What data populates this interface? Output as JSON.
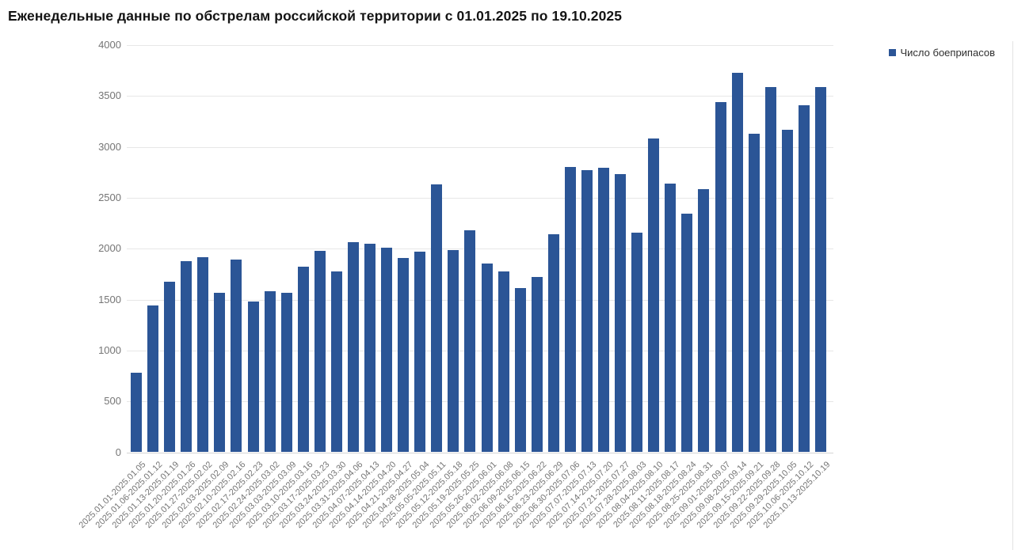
{
  "title": "Еженедельные данные по обстрелам российской территории с 01.01.2025 по 19.10.2025",
  "legend": {
    "label": "Число боеприпасов"
  },
  "colors": {
    "bar": "#2b5596",
    "grid": "#e7e7e7",
    "baseline": "#d6d6d6",
    "axis_text": "#757575",
    "title_text": "#141414",
    "edge_line": "#e3e3e3"
  },
  "chart_data": {
    "type": "bar",
    "title": "Еженедельные данные по обстрелам российской территории с 01.01.2025 по 19.10.2025",
    "xlabel": "",
    "ylabel": "",
    "ylim": [
      0,
      4000
    ],
    "yticks": [
      0,
      500,
      1000,
      1500,
      2000,
      2500,
      3000,
      3500,
      4000
    ],
    "grid": true,
    "legend_position": "top-right",
    "categories": [
      "2025.01.01-2025.01.05",
      "2025.01.06-2025.01.12",
      "2025.01.13-2025.01.19",
      "2025.01.20-2025.01.26",
      "2025.01.27-2025.02.02",
      "2025.02.03-2025.02.09",
      "2025.02.10-2025.02.16",
      "2025.02.17-2025.02.23",
      "2025.02.24-2025.03.02",
      "2025.03.03-2025.03.09",
      "2025.03.10-2025.03.16",
      "2025.03.17-2025.03.23",
      "2025.03.24-2025.03.30",
      "2025.03.31-2025.04.06",
      "2025.04.07-2025.04.13",
      "2025.04.14-2025.04.20",
      "2025.04.21-2025.04.27",
      "2025.04.28-2025.05.04",
      "2025.05.05-2025.05.11",
      "2025.05.12-2025.05.18",
      "2025.05.19-2025.05.25",
      "2025.05.26-2025.06.01",
      "2025.06.02-2025.06.08",
      "2025.06.09-2025.06.15",
      "2025.06.16-2025.06.22",
      "2025.06.23-2025.06.29",
      "2025.06.30-2025.07.06",
      "2025.07.07-2025.07.13",
      "2025.07.14-2025.07.20",
      "2025.07.21-2025.07.27",
      "2025.07.28-2025.08.03",
      "2025.08.04-2025.08.10",
      "2025.08.11-2025.08.17",
      "2025.08.18-2025.08.24",
      "2025.08.25-2025.08.31",
      "2025.09.01-2025.09.07",
      "2025.09.08-2025.09.14",
      "2025.09.15-2025.09.21",
      "2025.09.22-2025.09.28",
      "2025.09.29-2025.10.05",
      "2025.10.06-2025.10.12",
      "2025.10.13-2025.10.19"
    ],
    "series": [
      {
        "name": "Число боеприпасов",
        "values": [
          785,
          1440,
          1675,
          1880,
          1920,
          1565,
          1890,
          1480,
          1580,
          1570,
          1820,
          1975,
          1780,
          2065,
          2045,
          2010,
          1910,
          1970,
          2630,
          1990,
          2180,
          1855,
          1775,
          1615,
          1720,
          2145,
          2805,
          2770,
          2795,
          2730,
          2155,
          3085,
          2640,
          2345,
          2585,
          3440,
          3725,
          3130,
          3585,
          3165,
          3410,
          3585
        ]
      }
    ]
  }
}
